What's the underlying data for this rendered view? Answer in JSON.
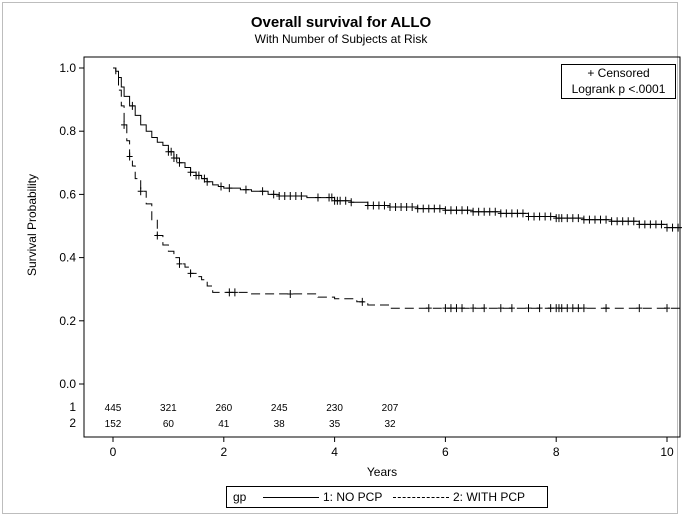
{
  "chart_data": {
    "type": "line",
    "title": "Overall survival for ALLO",
    "subtitle": "With Number of Subjects at Risk",
    "xlabel": "Years",
    "ylabel": "Survival Probability",
    "xlim": [
      0,
      10
    ],
    "ylim": [
      0,
      1
    ],
    "x_ticks": [
      0,
      2,
      4,
      6,
      8,
      10
    ],
    "y_ticks": [
      "0.0",
      "0.2",
      "0.4",
      "0.6",
      "0.8",
      "1.0"
    ],
    "grid": false,
    "series": [
      {
        "name": "1: NO PCP",
        "style": "solid",
        "points": [
          [
            0,
            1.0
          ],
          [
            0.05,
            0.99
          ],
          [
            0.1,
            0.97
          ],
          [
            0.15,
            0.94
          ],
          [
            0.2,
            0.91
          ],
          [
            0.3,
            0.88
          ],
          [
            0.4,
            0.85
          ],
          [
            0.5,
            0.82
          ],
          [
            0.6,
            0.8
          ],
          [
            0.7,
            0.78
          ],
          [
            0.8,
            0.765
          ],
          [
            0.9,
            0.755
          ],
          [
            1.0,
            0.735
          ],
          [
            1.1,
            0.715
          ],
          [
            1.2,
            0.7
          ],
          [
            1.3,
            0.685
          ],
          [
            1.4,
            0.67
          ],
          [
            1.5,
            0.66
          ],
          [
            1.6,
            0.65
          ],
          [
            1.7,
            0.64
          ],
          [
            1.8,
            0.63
          ],
          [
            1.9,
            0.625
          ],
          [
            2.0,
            0.62
          ],
          [
            2.3,
            0.615
          ],
          [
            2.5,
            0.61
          ],
          [
            2.8,
            0.6
          ],
          [
            3.0,
            0.595
          ],
          [
            3.5,
            0.59
          ],
          [
            4.0,
            0.58
          ],
          [
            4.3,
            0.575
          ],
          [
            4.6,
            0.565
          ],
          [
            5.0,
            0.56
          ],
          [
            5.5,
            0.555
          ],
          [
            6.0,
            0.55
          ],
          [
            6.5,
            0.545
          ],
          [
            7.0,
            0.54
          ],
          [
            7.5,
            0.53
          ],
          [
            8.0,
            0.525
          ],
          [
            8.5,
            0.52
          ],
          [
            9.0,
            0.515
          ],
          [
            9.5,
            0.505
          ],
          [
            10.0,
            0.495
          ],
          [
            10.3,
            0.495
          ]
        ],
        "censored_x": [
          0.35,
          1.0,
          1.05,
          1.1,
          1.15,
          1.2,
          1.4,
          1.5,
          1.55,
          1.65,
          1.7,
          1.95,
          2.1,
          2.4,
          2.7,
          2.9,
          3.0,
          3.1,
          3.2,
          3.3,
          3.4,
          3.7,
          3.9,
          3.95,
          4.0,
          4.05,
          4.1,
          4.2,
          4.3,
          4.6,
          4.7,
          4.8,
          4.9,
          5.0,
          5.1,
          5.2,
          5.3,
          5.4,
          5.5,
          5.6,
          5.7,
          5.8,
          5.9,
          6.0,
          6.1,
          6.2,
          6.3,
          6.4,
          6.5,
          6.6,
          6.7,
          6.8,
          6.9,
          7.0,
          7.1,
          7.2,
          7.3,
          7.4,
          7.5,
          7.6,
          7.7,
          7.8,
          7.9,
          8.0,
          8.05,
          8.1,
          8.2,
          8.3,
          8.4,
          8.5,
          8.6,
          8.7,
          8.8,
          8.9,
          9.0,
          9.1,
          9.2,
          9.3,
          9.4,
          9.5,
          9.6,
          9.7,
          9.8,
          9.9,
          10.0,
          10.1,
          10.2
        ]
      },
      {
        "name": "2: WITH PCP",
        "style": "dashed",
        "points": [
          [
            0,
            1.0
          ],
          [
            0.05,
            0.98
          ],
          [
            0.1,
            0.93
          ],
          [
            0.15,
            0.88
          ],
          [
            0.2,
            0.82
          ],
          [
            0.25,
            0.77
          ],
          [
            0.3,
            0.72
          ],
          [
            0.35,
            0.69
          ],
          [
            0.4,
            0.65
          ],
          [
            0.5,
            0.61
          ],
          [
            0.6,
            0.57
          ],
          [
            0.7,
            0.52
          ],
          [
            0.8,
            0.47
          ],
          [
            0.9,
            0.44
          ],
          [
            1.0,
            0.42
          ],
          [
            1.1,
            0.4
          ],
          [
            1.2,
            0.38
          ],
          [
            1.3,
            0.37
          ],
          [
            1.4,
            0.35
          ],
          [
            1.5,
            0.34
          ],
          [
            1.6,
            0.33
          ],
          [
            1.7,
            0.31
          ],
          [
            1.8,
            0.29
          ],
          [
            2.0,
            0.29
          ],
          [
            2.4,
            0.29
          ],
          [
            2.5,
            0.285
          ],
          [
            3.6,
            0.285
          ],
          [
            3.7,
            0.275
          ],
          [
            4.0,
            0.27
          ],
          [
            4.4,
            0.26
          ],
          [
            4.6,
            0.25
          ],
          [
            5.0,
            0.24
          ],
          [
            10.3,
            0.24
          ]
        ],
        "censored_x": [
          0.2,
          0.3,
          0.5,
          0.8,
          1.2,
          1.4,
          2.1,
          2.2,
          3.2,
          4.5,
          5.7,
          6.0,
          6.1,
          6.2,
          6.3,
          6.5,
          6.7,
          7.0,
          7.2,
          7.5,
          7.7,
          7.9,
          8.0,
          8.05,
          8.1,
          8.2,
          8.3,
          8.4,
          8.5,
          8.9,
          9.5,
          10.0
        ]
      }
    ],
    "at_risk": {
      "x": [
        0,
        1,
        2,
        3,
        4,
        5
      ],
      "rows": [
        {
          "label": "1",
          "values": [
            "445",
            "321",
            "260",
            "245",
            "230",
            "207"
          ]
        },
        {
          "label": "2",
          "values": [
            "152",
            "60",
            "41",
            "38",
            "35",
            "32"
          ]
        }
      ]
    },
    "annotation": {
      "line1": "+ Censored",
      "line2": "Logrank p <.0001"
    },
    "legend": {
      "title": "gp",
      "items": [
        "1: NO PCP",
        "2: WITH PCP"
      ],
      "position": "bottom"
    }
  }
}
